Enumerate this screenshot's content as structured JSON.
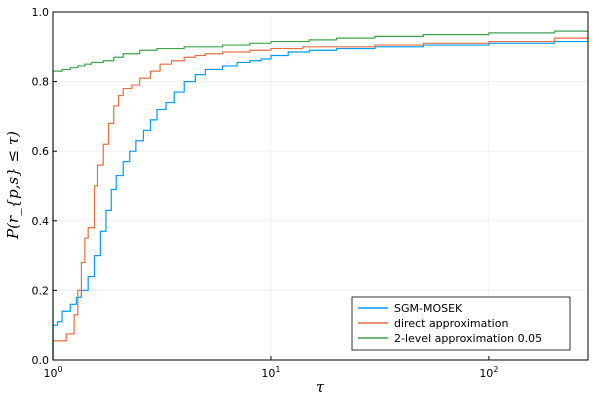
{
  "chart_data": {
    "type": "line",
    "title": "",
    "xlabel": "τ",
    "ylabel": "P(r_{p,s} ≤ τ)",
    "xscale": "log10",
    "xlim": [
      1,
      285
    ],
    "ylim": [
      0,
      1
    ],
    "x_ticks": [
      {
        "value": 1,
        "base": "10",
        "exp": "0"
      },
      {
        "value": 10,
        "base": "10",
        "exp": "1"
      },
      {
        "value": 100,
        "base": "10",
        "exp": "2"
      }
    ],
    "y_ticks": [
      "0.0",
      "0.2",
      "0.4",
      "0.6",
      "0.8",
      "1.0"
    ],
    "grid": true,
    "legend_position": "bottom-right",
    "step": true,
    "series": [
      {
        "name": "SGM-MOSEK",
        "color": "#009AFA",
        "x": [
          1.0,
          1.05,
          1.1,
          1.2,
          1.28,
          1.35,
          1.45,
          1.55,
          1.65,
          1.75,
          1.85,
          1.95,
          2.1,
          2.25,
          2.4,
          2.6,
          2.8,
          3.0,
          3.3,
          3.6,
          4.0,
          4.5,
          5.0,
          6.0,
          7.0,
          8.0,
          9.0,
          10.0,
          12.0,
          15.0,
          20.0,
          30.0,
          50.0,
          100.0,
          200.0,
          285.0
        ],
        "y": [
          0.1,
          0.11,
          0.14,
          0.16,
          0.18,
          0.2,
          0.24,
          0.3,
          0.37,
          0.43,
          0.49,
          0.53,
          0.57,
          0.6,
          0.63,
          0.66,
          0.69,
          0.72,
          0.74,
          0.77,
          0.8,
          0.82,
          0.835,
          0.845,
          0.855,
          0.86,
          0.865,
          0.875,
          0.885,
          0.89,
          0.895,
          0.9,
          0.905,
          0.91,
          0.915,
          0.915
        ]
      },
      {
        "name": "direct approximation",
        "color": "#E26F46",
        "x": [
          1.0,
          1.15,
          1.25,
          1.3,
          1.35,
          1.4,
          1.45,
          1.55,
          1.6,
          1.7,
          1.8,
          1.9,
          2.0,
          2.1,
          2.3,
          2.5,
          2.8,
          3.1,
          3.5,
          4.0,
          4.5,
          5.0,
          6.0,
          8.0,
          10.0,
          14.0,
          20.0,
          30.0,
          50.0,
          100.0,
          200.0,
          285.0
        ],
        "y": [
          0.055,
          0.075,
          0.13,
          0.2,
          0.28,
          0.35,
          0.38,
          0.5,
          0.56,
          0.62,
          0.68,
          0.73,
          0.76,
          0.78,
          0.79,
          0.81,
          0.83,
          0.85,
          0.86,
          0.87,
          0.875,
          0.88,
          0.885,
          0.89,
          0.895,
          0.9,
          0.9,
          0.905,
          0.91,
          0.915,
          0.925,
          0.925
        ]
      },
      {
        "name": "2-level approximation 0.05",
        "color": "#3DA44E",
        "x": [
          1.0,
          1.1,
          1.2,
          1.3,
          1.4,
          1.5,
          1.7,
          1.9,
          2.1,
          2.5,
          3.0,
          4.0,
          5.0,
          6.0,
          8.0,
          10.0,
          15.0,
          20.0,
          30.0,
          50.0,
          100.0,
          200.0,
          285.0
        ],
        "y": [
          0.83,
          0.835,
          0.84,
          0.845,
          0.85,
          0.855,
          0.86,
          0.87,
          0.88,
          0.89,
          0.895,
          0.9,
          0.9,
          0.905,
          0.91,
          0.915,
          0.92,
          0.925,
          0.93,
          0.935,
          0.94,
          0.945,
          0.945
        ]
      }
    ]
  }
}
